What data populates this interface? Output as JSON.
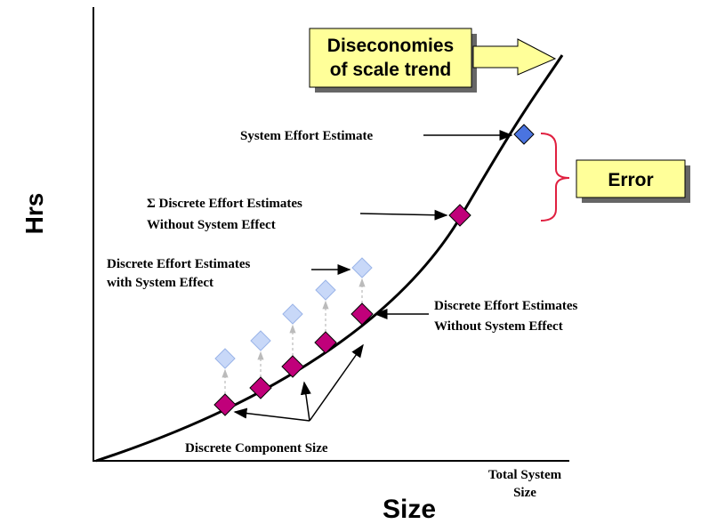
{
  "axes": {
    "y_label": "Hrs",
    "x_label": "Size",
    "x_end_label": [
      "Total System",
      "Size"
    ]
  },
  "callouts": {
    "trend": [
      "Diseconomies",
      "of scale trend"
    ],
    "error": "Error"
  },
  "annotations": {
    "system_estimate": "System Effort Estimate",
    "sum_discrete": [
      "Σ Discrete Effort Estimates",
      "Without System Effect"
    ],
    "discrete_with": [
      "Discrete Effort Estimates",
      "with System Effect"
    ],
    "discrete_without": [
      "Discrete Effort Estimates",
      "Without System Effect"
    ],
    "component_size": "Discrete Component Size"
  }
}
